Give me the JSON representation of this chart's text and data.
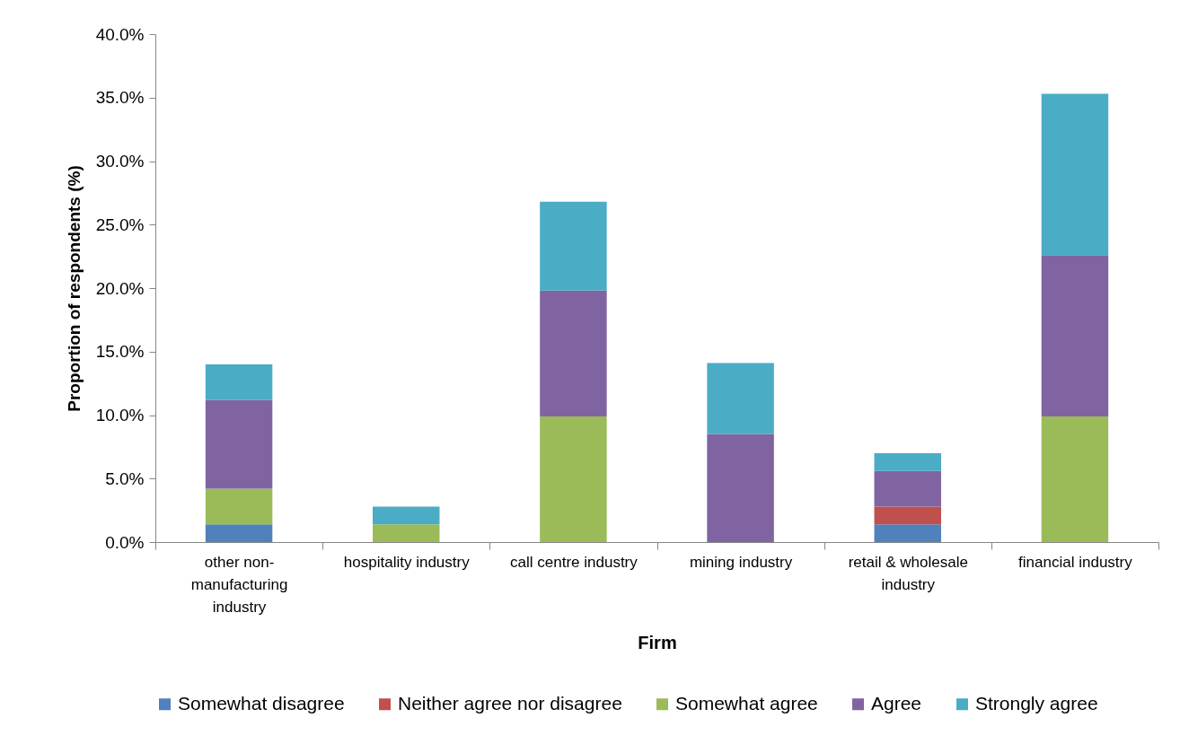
{
  "chart_data": {
    "type": "bar",
    "stacked": true,
    "xlabel": "Firm",
    "ylabel": "Proportion of respondents (%)",
    "categories": [
      "other non-manufacturing industry",
      "hospitality industry",
      "call centre industry",
      "mining industry",
      "retail & wholesale industry",
      "financial industry"
    ],
    "series": [
      {
        "name": "Somewhat disagree",
        "color": "#4f81bd",
        "values": [
          1.4,
          null,
          null,
          null,
          1.4,
          null
        ]
      },
      {
        "name": "Neither agree nor disagree",
        "color": "#c0504d",
        "values": [
          null,
          null,
          null,
          null,
          1.4,
          null
        ]
      },
      {
        "name": "Somewhat agree",
        "color": "#9bbb59",
        "values": [
          2.8,
          1.4,
          9.9,
          null,
          null,
          9.9
        ]
      },
      {
        "name": "Agree",
        "color": "#8064a2",
        "values": [
          7.0,
          null,
          9.9,
          8.5,
          2.8,
          12.7
        ]
      },
      {
        "name": "Strongly agree",
        "color": "#4bacc6",
        "values": [
          2.8,
          1.4,
          7.0,
          5.6,
          1.4,
          12.7
        ]
      }
    ],
    "ylim": [
      0,
      40
    ],
    "yticks": [
      {
        "value": 0,
        "label": "0.0%"
      },
      {
        "value": 5,
        "label": "5.0%"
      },
      {
        "value": 10,
        "label": "10.0%"
      },
      {
        "value": 15,
        "label": "15.0%"
      },
      {
        "value": 20,
        "label": "20.0%"
      },
      {
        "value": 25,
        "label": "25.0%"
      },
      {
        "value": 30,
        "label": "30.0%"
      },
      {
        "value": 35,
        "label": "35.0%"
      },
      {
        "value": 40,
        "label": "40.0%"
      }
    ],
    "grid": false,
    "legend": "bottom"
  }
}
